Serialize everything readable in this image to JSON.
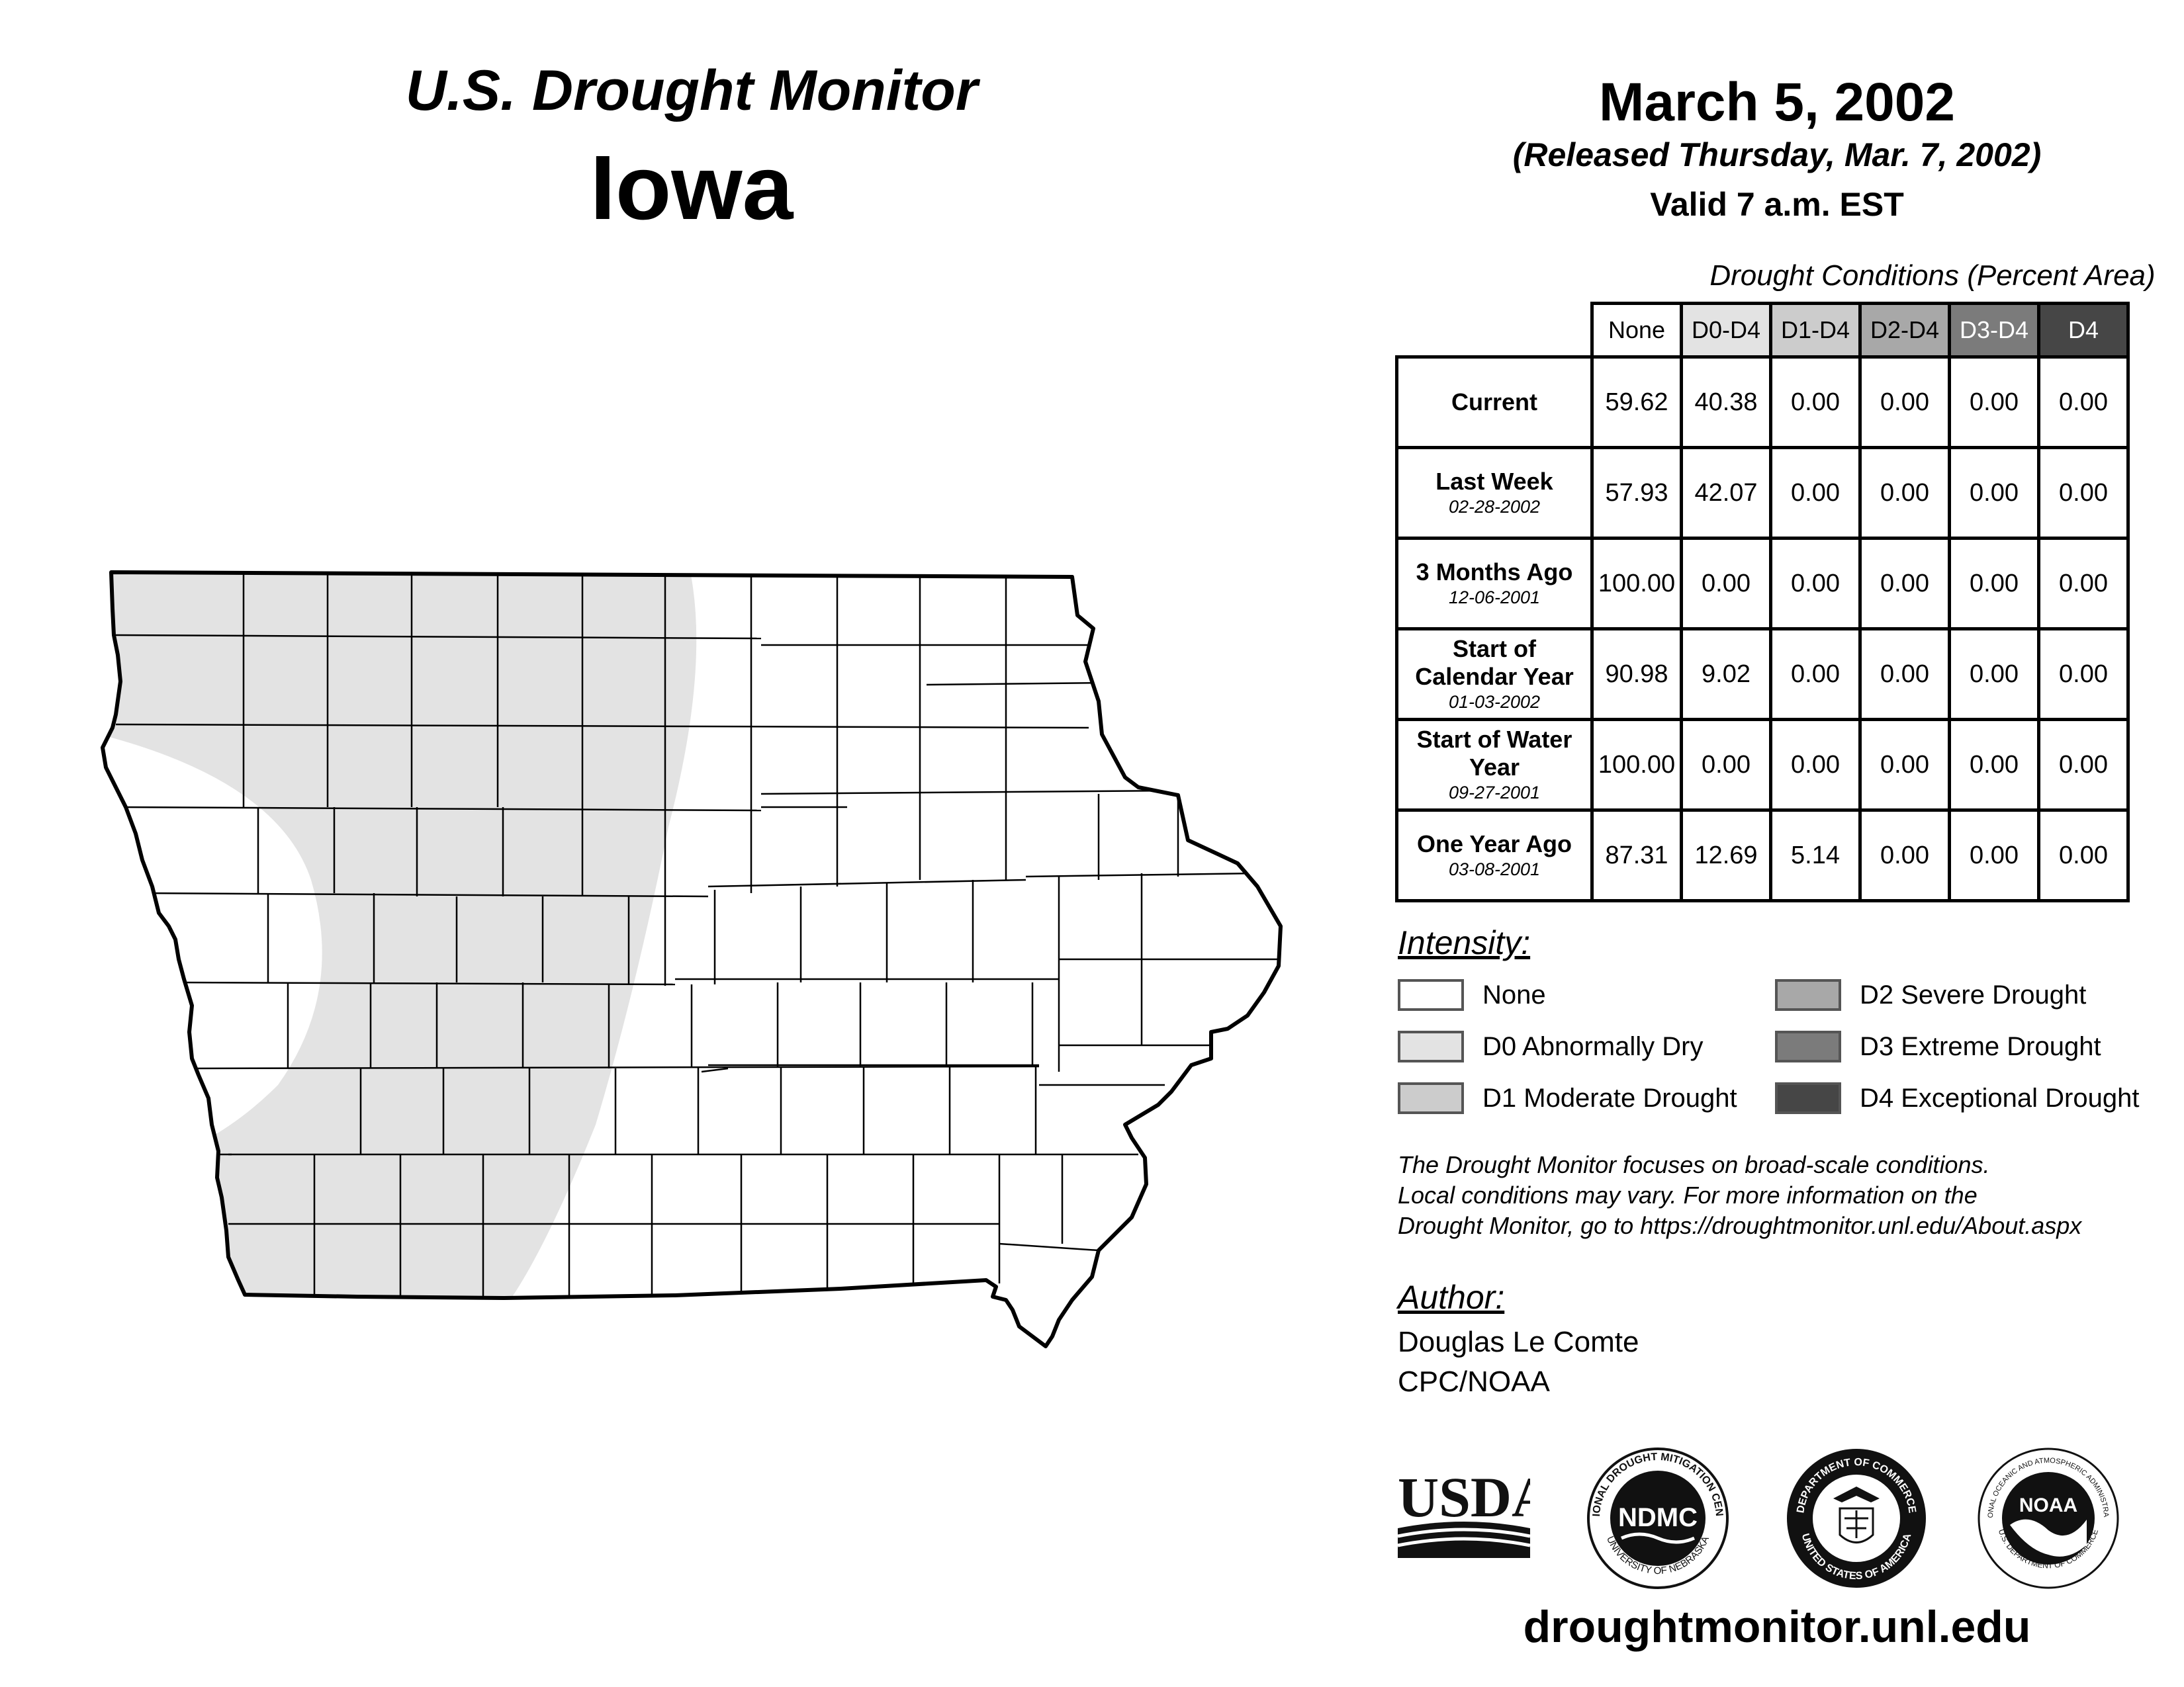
{
  "header": {
    "title": "U.S. Drought Monitor",
    "state": "Iowa",
    "date": "March 5, 2002",
    "released": "(Released Thursday, Mar. 7, 2002)",
    "valid": "Valid 7 a.m. EST"
  },
  "table": {
    "caption": "Drought Conditions (Percent Area)",
    "columns": [
      "None",
      "D0-D4",
      "D1-D4",
      "D2-D4",
      "D3-D4",
      "D4"
    ],
    "rows": [
      {
        "label": "Current",
        "date": "",
        "values": [
          "59.62",
          "40.38",
          "0.00",
          "0.00",
          "0.00",
          "0.00"
        ]
      },
      {
        "label": "Last Week",
        "date": "02-28-2002",
        "values": [
          "57.93",
          "42.07",
          "0.00",
          "0.00",
          "0.00",
          "0.00"
        ]
      },
      {
        "label": "3 Months Ago",
        "date": "12-06-2001",
        "values": [
          "100.00",
          "0.00",
          "0.00",
          "0.00",
          "0.00",
          "0.00"
        ]
      },
      {
        "label": "Start of Calendar Year",
        "date": "01-03-2002",
        "values": [
          "90.98",
          "9.02",
          "0.00",
          "0.00",
          "0.00",
          "0.00"
        ]
      },
      {
        "label": "Start of Water Year",
        "date": "09-27-2001",
        "values": [
          "100.00",
          "0.00",
          "0.00",
          "0.00",
          "0.00",
          "0.00"
        ]
      },
      {
        "label": "One Year Ago",
        "date": "03-08-2001",
        "values": [
          "87.31",
          "12.69",
          "5.14",
          "0.00",
          "0.00",
          "0.00"
        ]
      }
    ]
  },
  "legend": {
    "heading": "Intensity:",
    "items": [
      {
        "label": "None",
        "color": "#ffffff"
      },
      {
        "label": "D0 Abnormally Dry",
        "color": "#e3e3e3"
      },
      {
        "label": "D1 Moderate Drought",
        "color": "#cccccc"
      },
      {
        "label": "D2 Severe Drought",
        "color": "#a8a8a8"
      },
      {
        "label": "D3 Extreme Drought",
        "color": "#7b7b7b"
      },
      {
        "label": "D4 Exceptional Drought",
        "color": "#464646"
      }
    ]
  },
  "note": {
    "line1": "The Drought Monitor focuses on broad-scale conditions.",
    "line2": "Local conditions may vary. For more information on the",
    "line3": "Drought Monitor, go to https://droughtmonitor.unl.edu/About.aspx"
  },
  "author": {
    "heading": "Author:",
    "name": "Douglas Le Comte",
    "org": "CPC/NOAA"
  },
  "logos": {
    "usda": "USDA",
    "ndmc": "NDMC",
    "ndmc_ring_top": "NATIONAL DROUGHT MITIGATION CENTER",
    "ndmc_ring_bottom": "UNIVERSITY OF NEBRASKA",
    "doc_ring_top": "DEPARTMENT OF COMMERCE",
    "doc_ring_bottom": "UNITED STATES OF AMERICA",
    "noaa": "NOAA",
    "noaa_ring_top": "NATIONAL OCEANIC AND ATMOSPHERIC ADMINISTRATION",
    "noaa_ring_bottom": "U.S. DEPARTMENT OF COMMERCE"
  },
  "footer": {
    "url": "droughtmonitor.unl.edu"
  },
  "map": {
    "region": "Iowa",
    "drought_category_shown": "D0",
    "d0_color": "#e3e3e3",
    "county_fill": "#ffffff",
    "outline_color": "#000000"
  }
}
